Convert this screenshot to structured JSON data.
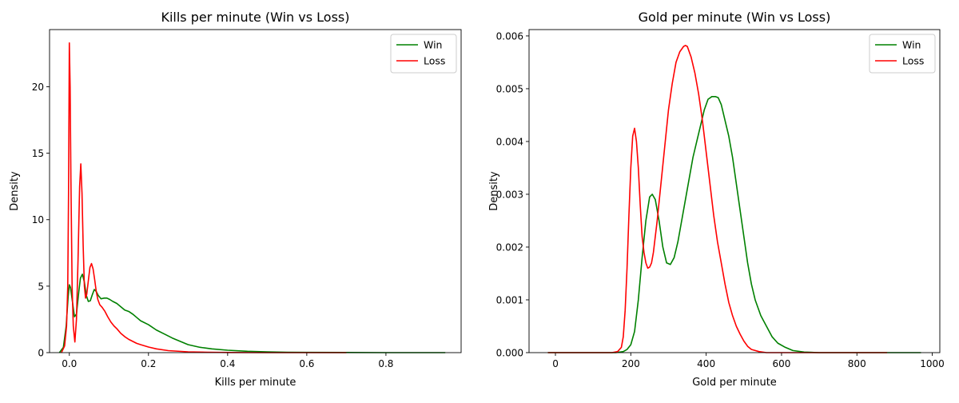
{
  "chart_data": [
    {
      "type": "line",
      "title": "Kills per minute (Win vs Loss)",
      "xlabel": "Kills per minute",
      "ylabel": "Density",
      "xlim": [
        -0.05,
        0.99
      ],
      "ylim": [
        0,
        24.3
      ],
      "xticks": [
        0.0,
        0.2,
        0.4,
        0.6,
        0.8
      ],
      "xtick_labels": [
        "0.0",
        "0.2",
        "0.4",
        "0.6",
        "0.8"
      ],
      "yticks": [
        0,
        5,
        10,
        15,
        20
      ],
      "ytick_labels": [
        "0",
        "5",
        "10",
        "15",
        "20"
      ],
      "grid": false,
      "legend": "top-right",
      "series": [
        {
          "name": "Win",
          "color": "#008000",
          "x": [
            -0.025,
            -0.015,
            -0.008,
            -0.003,
            0.0,
            0.003,
            0.008,
            0.013,
            0.018,
            0.024,
            0.028,
            0.033,
            0.038,
            0.043,
            0.048,
            0.053,
            0.058,
            0.063,
            0.068,
            0.073,
            0.08,
            0.088,
            0.095,
            0.102,
            0.11,
            0.12,
            0.13,
            0.14,
            0.15,
            0.16,
            0.17,
            0.18,
            0.2,
            0.22,
            0.24,
            0.26,
            0.28,
            0.3,
            0.33,
            0.36,
            0.4,
            0.45,
            0.5,
            0.55,
            0.6,
            0.7,
            0.8,
            0.9,
            0.95
          ],
          "y": [
            0.0,
            0.4,
            2.0,
            4.2,
            5.1,
            4.9,
            3.8,
            2.7,
            2.9,
            4.6,
            5.6,
            5.9,
            5.3,
            4.3,
            3.85,
            3.9,
            4.35,
            4.75,
            4.6,
            4.3,
            4.05,
            4.1,
            4.1,
            4.0,
            3.85,
            3.7,
            3.45,
            3.2,
            3.1,
            2.9,
            2.65,
            2.4,
            2.1,
            1.7,
            1.4,
            1.1,
            0.85,
            0.6,
            0.4,
            0.28,
            0.18,
            0.1,
            0.06,
            0.03,
            0.02,
            0.01,
            0.0,
            0.0,
            0.0
          ]
        },
        {
          "name": "Loss",
          "color": "#ff0000",
          "x": [
            -0.02,
            -0.012,
            -0.007,
            -0.004,
            -0.002,
            0.0,
            0.002,
            0.004,
            0.007,
            0.01,
            0.014,
            0.018,
            0.022,
            0.026,
            0.029,
            0.032,
            0.035,
            0.038,
            0.041,
            0.044,
            0.048,
            0.052,
            0.056,
            0.06,
            0.064,
            0.068,
            0.072,
            0.077,
            0.083,
            0.09,
            0.097,
            0.105,
            0.113,
            0.12,
            0.13,
            0.14,
            0.15,
            0.16,
            0.17,
            0.18,
            0.2,
            0.22,
            0.25,
            0.3,
            0.35,
            0.4,
            0.5,
            0.6,
            0.7
          ],
          "y": [
            0.0,
            0.5,
            2.0,
            5.0,
            12.0,
            23.3,
            20.0,
            13.0,
            5.0,
            2.0,
            0.8,
            2.5,
            7.0,
            12.5,
            14.2,
            12.0,
            8.0,
            5.0,
            4.1,
            4.4,
            5.4,
            6.4,
            6.7,
            6.3,
            5.5,
            4.6,
            4.0,
            3.6,
            3.4,
            3.1,
            2.7,
            2.3,
            2.0,
            1.8,
            1.45,
            1.2,
            1.0,
            0.85,
            0.7,
            0.6,
            0.42,
            0.28,
            0.15,
            0.06,
            0.03,
            0.01,
            0.0,
            0.0,
            0.0
          ]
        }
      ]
    },
    {
      "type": "line",
      "title": "Gold per minute (Win vs Loss)",
      "xlabel": "Gold per minute",
      "ylabel": "Density",
      "xlim": [
        -70,
        1020
      ],
      "ylim": [
        0,
        0.00612
      ],
      "xticks": [
        0,
        200,
        400,
        600,
        800,
        1000
      ],
      "xtick_labels": [
        "0",
        "200",
        "400",
        "600",
        "800",
        "1000"
      ],
      "yticks": [
        0.0,
        0.001,
        0.002,
        0.003,
        0.004,
        0.005,
        0.006
      ],
      "ytick_labels": [
        "0.000",
        "0.001",
        "0.002",
        "0.003",
        "0.004",
        "0.005",
        "0.006"
      ],
      "grid": false,
      "legend": "top-right",
      "series": [
        {
          "name": "Win",
          "color": "#008000",
          "x": [
            -20,
            100,
            160,
            180,
            190,
            200,
            210,
            220,
            230,
            240,
            250,
            257,
            265,
            275,
            285,
            295,
            305,
            315,
            325,
            335,
            345,
            355,
            365,
            375,
            385,
            395,
            405,
            415,
            425,
            432,
            440,
            450,
            460,
            470,
            480,
            490,
            500,
            510,
            520,
            530,
            545,
            560,
            575,
            590,
            610,
            630,
            660,
            700,
            800,
            900,
            970
          ],
          "y": [
            0.0,
            0.0,
            0.0,
            2e-05,
            6e-05,
            0.00015,
            0.0004,
            0.001,
            0.0018,
            0.0025,
            0.00295,
            0.003,
            0.0029,
            0.0025,
            0.002,
            0.0017,
            0.00167,
            0.0018,
            0.0021,
            0.0025,
            0.0029,
            0.0033,
            0.0037,
            0.004,
            0.0043,
            0.0046,
            0.0048,
            0.00485,
            0.00485,
            0.00483,
            0.0047,
            0.0044,
            0.0041,
            0.0037,
            0.0032,
            0.0027,
            0.0022,
            0.0017,
            0.0013,
            0.001,
            0.0007,
            0.0005,
            0.0003,
            0.00018,
            0.0001,
            4e-05,
            1e-05,
            0.0,
            0.0,
            0.0,
            0.0
          ]
        },
        {
          "name": "Loss",
          "color": "#ff0000",
          "x": [
            -20,
            100,
            150,
            165,
            175,
            180,
            185,
            190,
            195,
            200,
            205,
            210,
            215,
            220,
            225,
            230,
            235,
            240,
            245,
            250,
            255,
            260,
            270,
            280,
            290,
            300,
            310,
            320,
            330,
            340,
            345,
            350,
            360,
            370,
            380,
            390,
            400,
            410,
            420,
            430,
            440,
            450,
            460,
            470,
            480,
            490,
            500,
            510,
            520,
            540,
            560,
            600,
            700,
            880
          ],
          "y": [
            0.0,
            0.0,
            0.0,
            2e-05,
            0.0001,
            0.0003,
            0.0008,
            0.0016,
            0.0026,
            0.0035,
            0.0041,
            0.00425,
            0.004,
            0.0035,
            0.0028,
            0.0022,
            0.0019,
            0.0017,
            0.0016,
            0.00162,
            0.0017,
            0.0019,
            0.0025,
            0.0032,
            0.0039,
            0.0046,
            0.0051,
            0.0055,
            0.0057,
            0.0058,
            0.00582,
            0.0058,
            0.0056,
            0.0053,
            0.0049,
            0.0044,
            0.0038,
            0.0032,
            0.0026,
            0.0021,
            0.0017,
            0.0013,
            0.00095,
            0.0007,
            0.0005,
            0.00035,
            0.00022,
            0.00012,
            6e-05,
            2e-05,
            0.0,
            0.0,
            0.0,
            0.0
          ]
        }
      ]
    }
  ]
}
